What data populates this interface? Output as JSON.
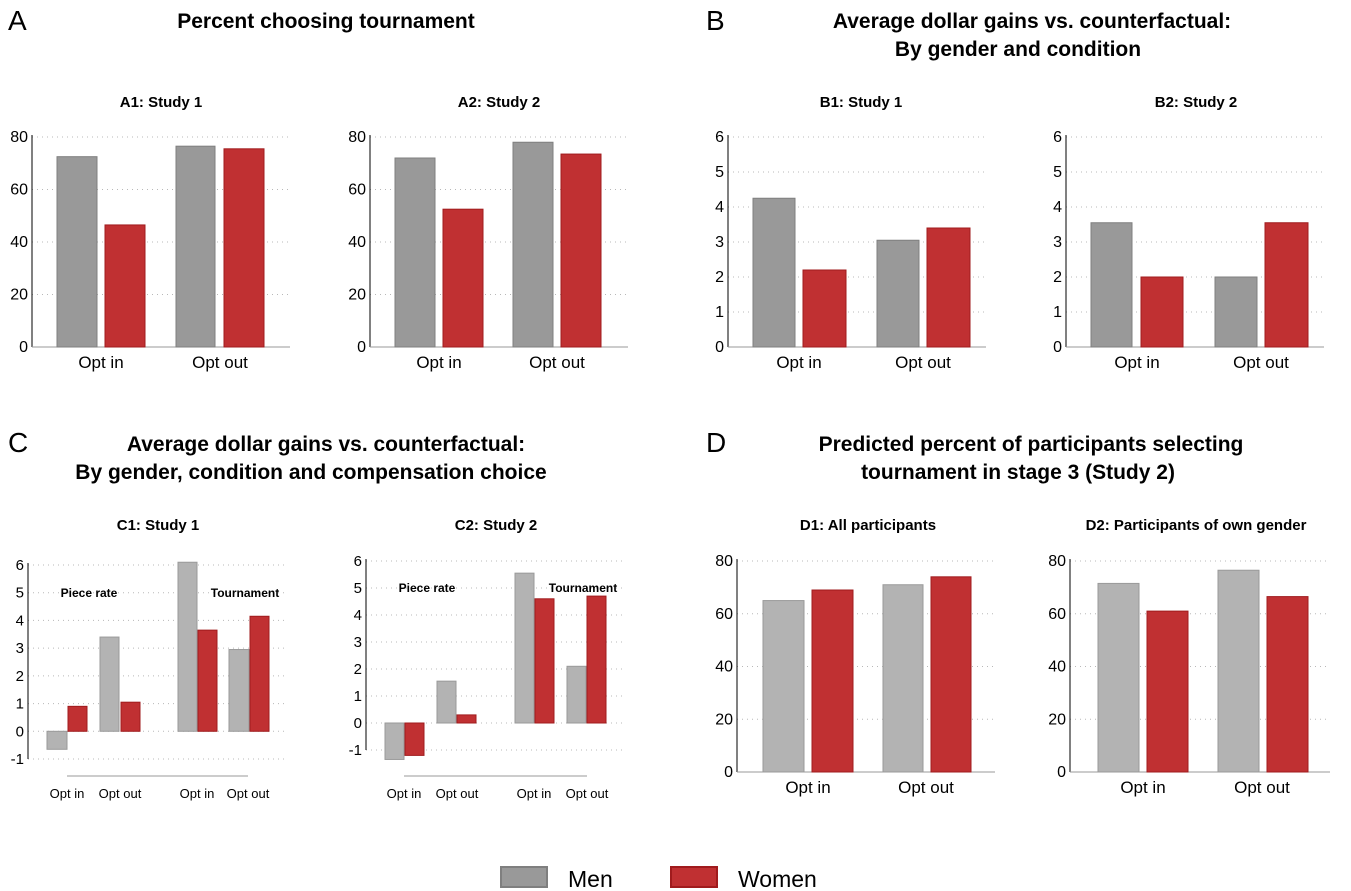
{
  "colors": {
    "men": "#999999",
    "men_light": "#b3b3b3",
    "women": "#c03032",
    "men_border": "#7f7f7f",
    "women_border": "#a01b1d"
  },
  "legend": {
    "men": "Men",
    "women": "Women"
  },
  "sections": {
    "A": {
      "letter": "A",
      "title_lines": [
        "Percent choosing tournament"
      ]
    },
    "B": {
      "letter": "B",
      "title_lines": [
        "Average dollar gains vs. counterfactual:",
        "By gender and condition"
      ]
    },
    "C": {
      "letter": "C",
      "title_lines": [
        "Average dollar gains vs. counterfactual:",
        "By gender, condition and compensation choice"
      ]
    },
    "D": {
      "letter": "D",
      "title_lines": [
        "Predicted percent of participants selecting",
        "tournament in stage 3 (Study 2)"
      ]
    }
  },
  "chart_data": [
    {
      "id": "A1",
      "type": "bar",
      "title": "A1: Study 1",
      "categories": [
        "Opt in",
        "Opt out"
      ],
      "ylim": [
        0,
        80
      ],
      "yticks": [
        0,
        20,
        40,
        60,
        80
      ],
      "grid": true,
      "series": [
        {
          "name": "Men",
          "values": [
            72.5,
            76.5
          ]
        },
        {
          "name": "Women",
          "values": [
            46.5,
            75.5
          ]
        }
      ]
    },
    {
      "id": "A2",
      "type": "bar",
      "title": "A2: Study 2",
      "categories": [
        "Opt in",
        "Opt out"
      ],
      "ylim": [
        0,
        80
      ],
      "yticks": [
        0,
        20,
        40,
        60,
        80
      ],
      "grid": true,
      "series": [
        {
          "name": "Men",
          "values": [
            72,
            78
          ]
        },
        {
          "name": "Women",
          "values": [
            52.5,
            73.5
          ]
        }
      ]
    },
    {
      "id": "B1",
      "type": "bar",
      "title": "B1: Study 1",
      "categories": [
        "Opt in",
        "Opt out"
      ],
      "ylim": [
        0,
        6
      ],
      "yticks": [
        0,
        1,
        2,
        3,
        4,
        5,
        6
      ],
      "grid": true,
      "series": [
        {
          "name": "Men",
          "values": [
            4.25,
            3.05
          ]
        },
        {
          "name": "Women",
          "values": [
            2.2,
            3.4
          ]
        }
      ]
    },
    {
      "id": "B2",
      "type": "bar",
      "title": "B2: Study 2",
      "categories": [
        "Opt in",
        "Opt out"
      ],
      "ylim": [
        0,
        6
      ],
      "yticks": [
        0,
        1,
        2,
        3,
        4,
        5,
        6
      ],
      "grid": true,
      "series": [
        {
          "name": "Men",
          "values": [
            3.55,
            2.0
          ]
        },
        {
          "name": "Women",
          "values": [
            2.0,
            3.55
          ]
        }
      ]
    },
    {
      "id": "C1",
      "type": "bar",
      "title": "C1: Study 1",
      "categories": [
        "Opt in",
        "Opt out",
        "Opt in",
        "Opt out"
      ],
      "groups": [
        "Piece rate",
        "Tournament"
      ],
      "ylim": [
        -1,
        6
      ],
      "yticks": [
        -1,
        0,
        1,
        2,
        3,
        4,
        5,
        6
      ],
      "grid": true,
      "series": [
        {
          "name": "Men",
          "values": [
            -0.65,
            3.4,
            6.1,
            2.95
          ]
        },
        {
          "name": "Women",
          "values": [
            0.9,
            1.05,
            3.65,
            4.15
          ]
        }
      ]
    },
    {
      "id": "C2",
      "type": "bar",
      "title": "C2: Study 2",
      "categories": [
        "Opt in",
        "Opt out",
        "Opt in",
        "Opt out"
      ],
      "groups": [
        "Piece rate",
        "Tournament"
      ],
      "ylim": [
        -1,
        6
      ],
      "yticks": [
        -1,
        0,
        1,
        2,
        3,
        4,
        5,
        6
      ],
      "grid": true,
      "series": [
        {
          "name": "Men",
          "values": [
            -1.35,
            1.55,
            5.55,
            2.1
          ]
        },
        {
          "name": "Women",
          "values": [
            -1.2,
            0.3,
            4.6,
            4.7
          ]
        }
      ]
    },
    {
      "id": "D1",
      "type": "bar",
      "title": "D1: All participants",
      "categories": [
        "Opt in",
        "Opt out"
      ],
      "ylim": [
        0,
        80
      ],
      "yticks": [
        0,
        20,
        40,
        60,
        80
      ],
      "grid": true,
      "series": [
        {
          "name": "Men",
          "values": [
            65,
            71
          ]
        },
        {
          "name": "Women",
          "values": [
            69,
            74
          ]
        }
      ]
    },
    {
      "id": "D2",
      "type": "bar",
      "title": "D2: Participants of own gender",
      "categories": [
        "Opt in",
        "Opt out"
      ],
      "ylim": [
        0,
        80
      ],
      "yticks": [
        0,
        20,
        40,
        60,
        80
      ],
      "grid": true,
      "series": [
        {
          "name": "Men",
          "values": [
            71.5,
            76.5
          ]
        },
        {
          "name": "Women",
          "values": [
            61,
            66.5
          ]
        }
      ]
    }
  ]
}
